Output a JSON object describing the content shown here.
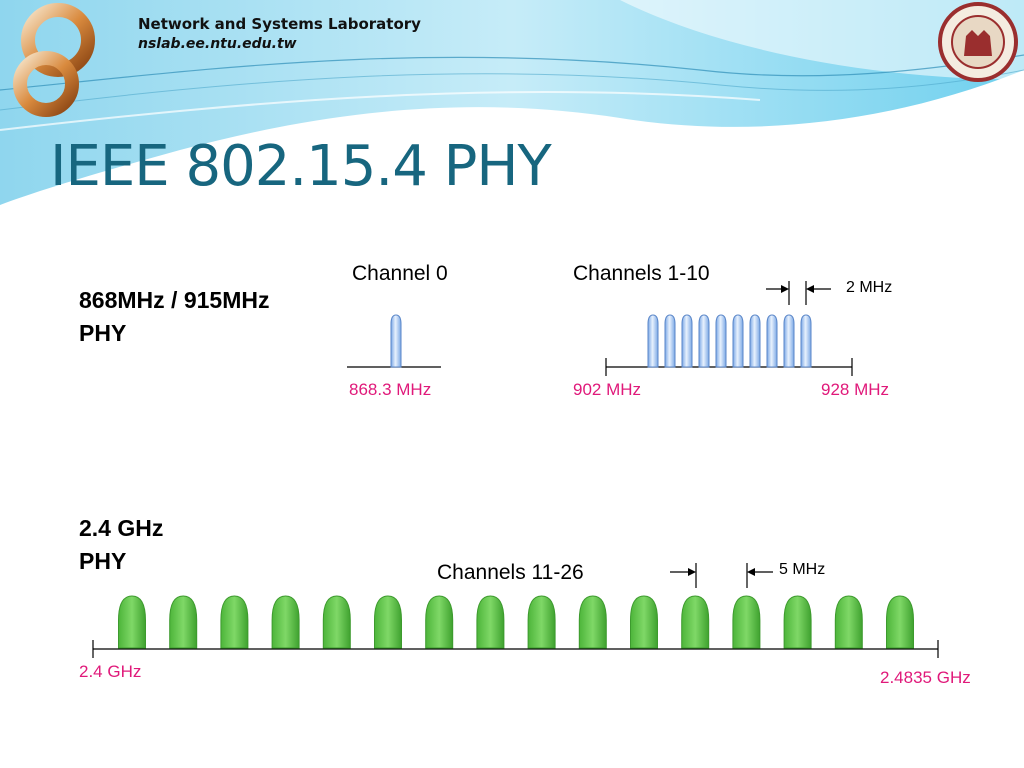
{
  "header": {
    "lab_name": "Network and Systems Laboratory",
    "lab_url": "nslab.ee.ntu.edu.tw",
    "logo_icon": "infinity-logo-icon",
    "seal_icon": "university-seal-icon"
  },
  "slide": {
    "title": "IEEE 802.15.4 PHY"
  },
  "band_868_915": {
    "phy_line1": "868MHz / 915MHz",
    "phy_line2": "PHY",
    "channel0": {
      "label": "Channel 0",
      "freq_label": "868.3 MHz",
      "count": 1
    },
    "channels_1_10": {
      "label": "Channels 1-10",
      "count": 10,
      "spacing_label": "2 MHz",
      "start_label": "902 MHz",
      "end_label": "928 MHz"
    },
    "color": "#a9c8f2"
  },
  "band_24": {
    "phy_line1": "2.4 GHz",
    "phy_line2": "PHY",
    "label": "Channels 11-26",
    "count": 16,
    "spacing_label": "5 MHz",
    "start_label": "2.4 GHz",
    "end_label": "2.4835 GHz",
    "color": "#5cc644"
  }
}
